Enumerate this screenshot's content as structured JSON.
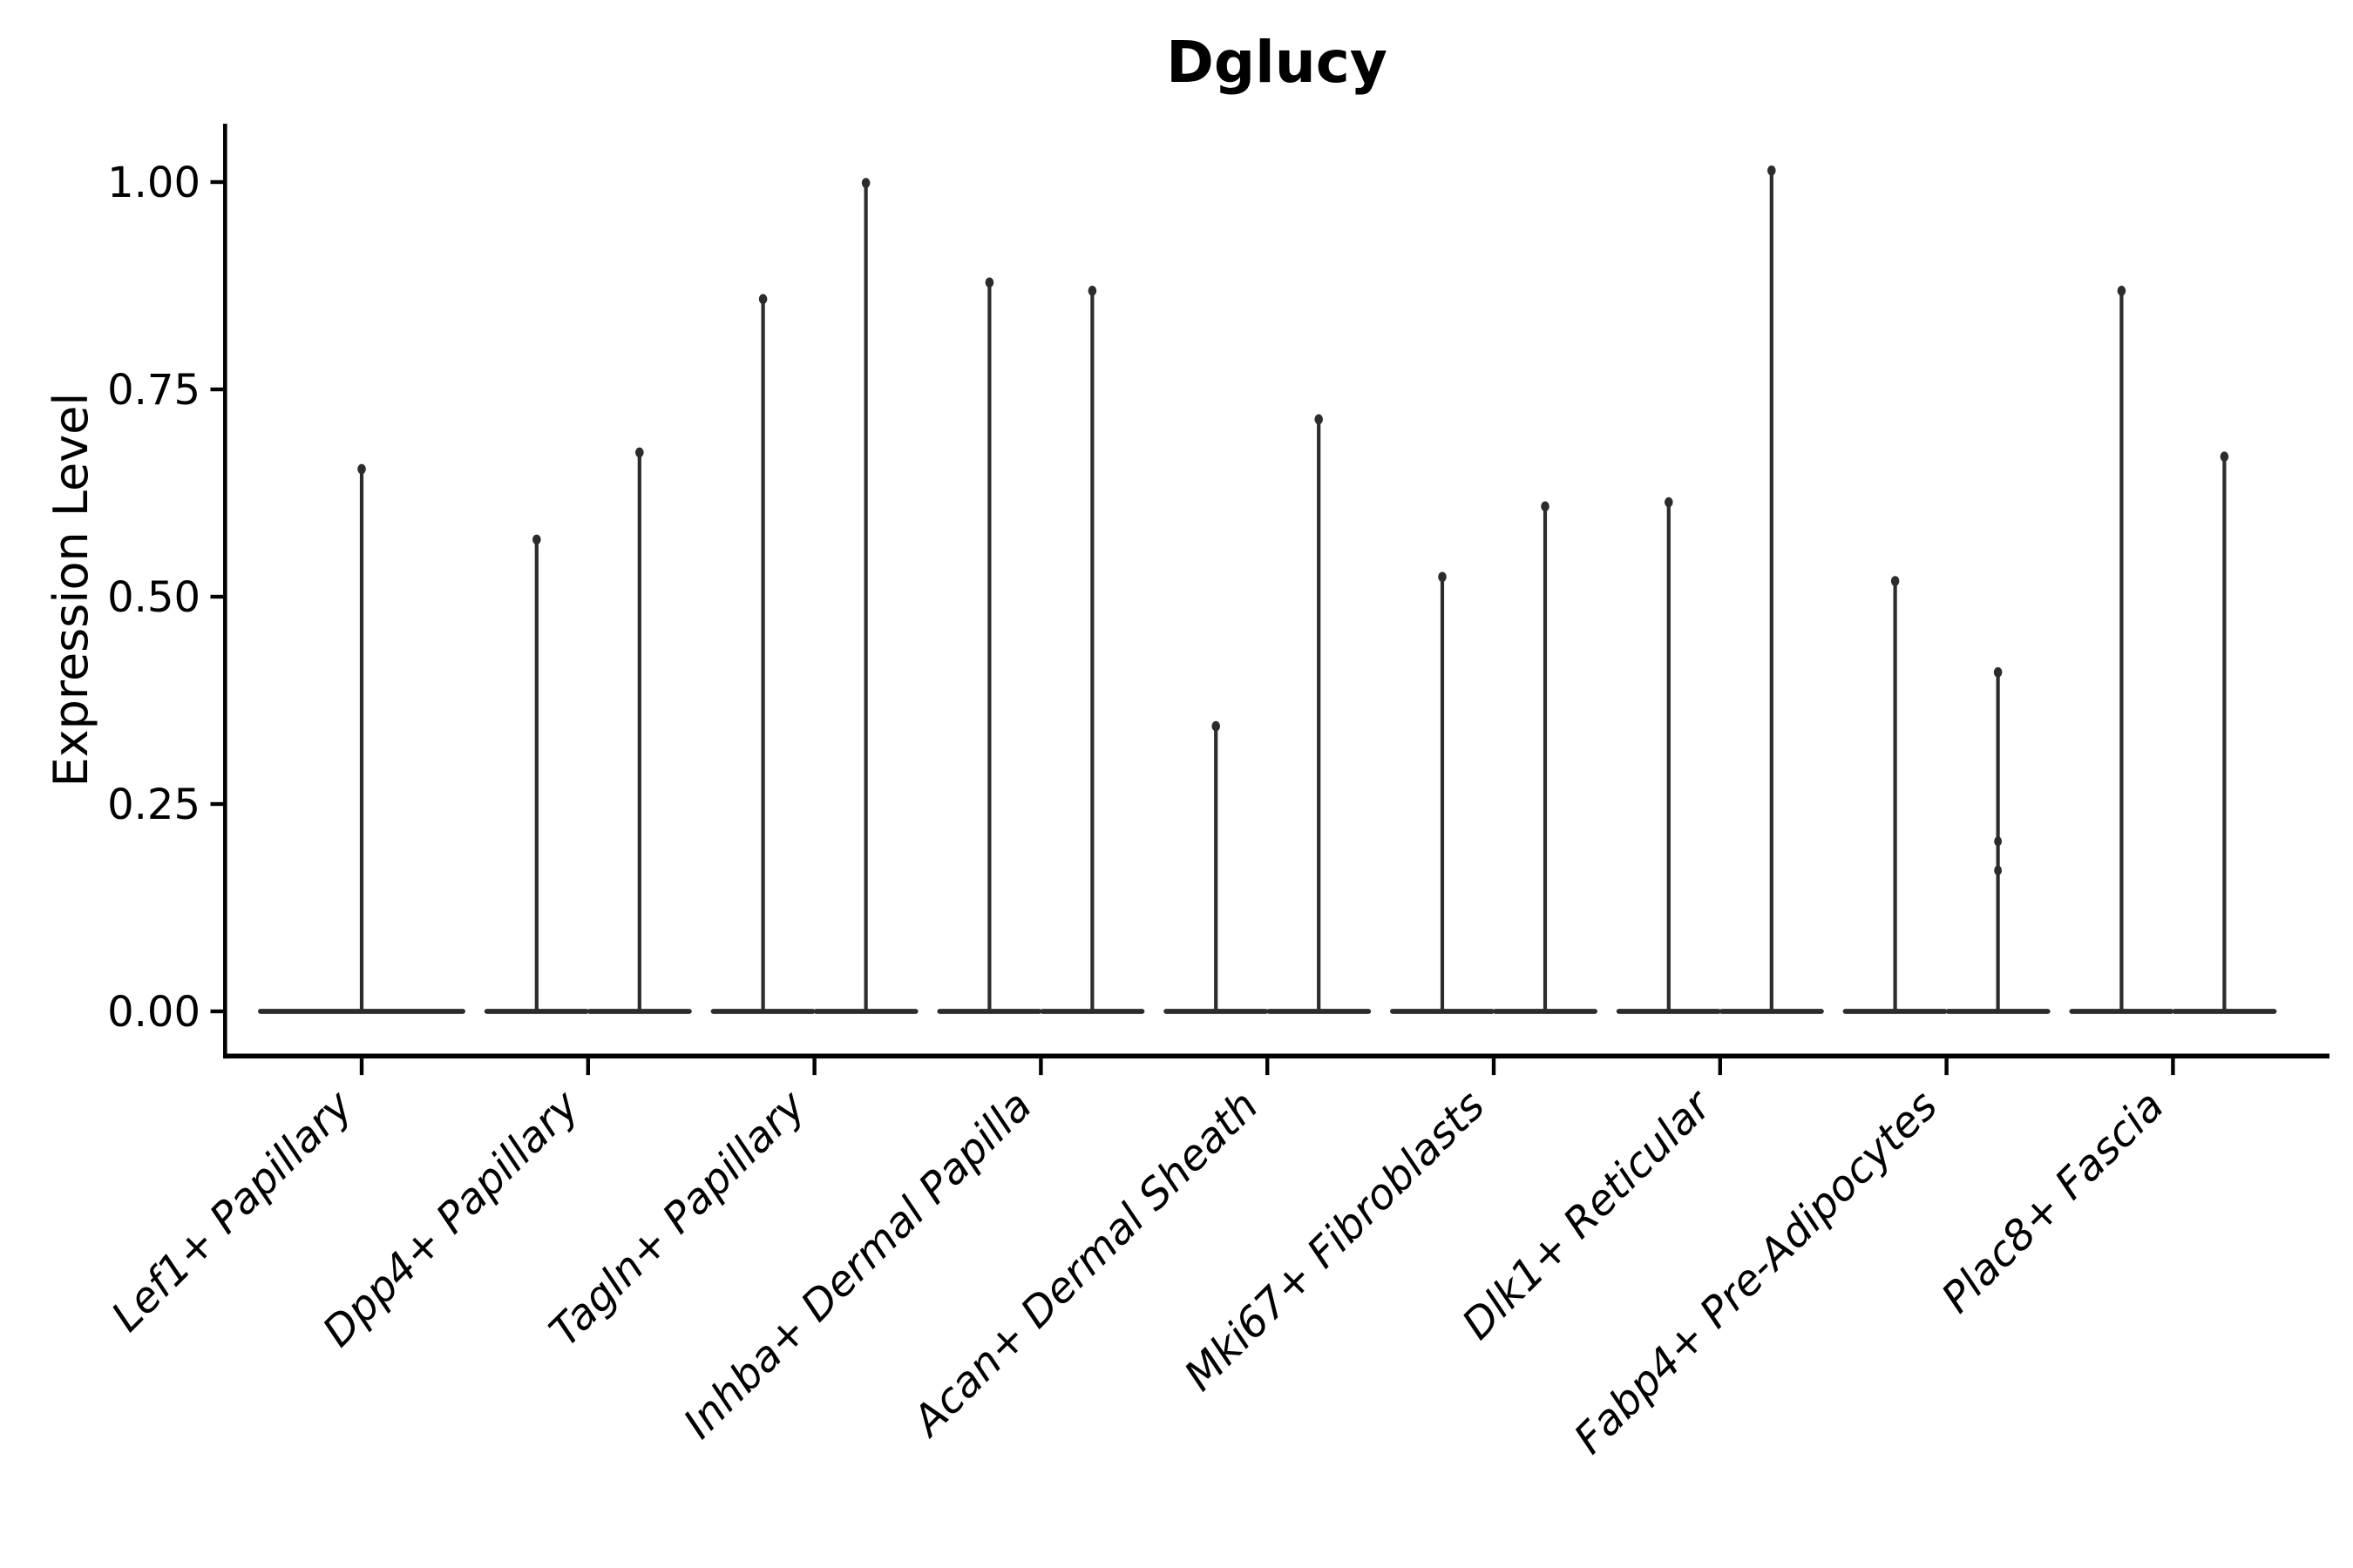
{
  "figure": {
    "title": "Dglucy",
    "ylabel": "Expression Level"
  },
  "chart_data": {
    "type": "violin",
    "title": "Dglucy",
    "xlabel": "",
    "ylabel": "Expression Level",
    "ylim": [
      -0.05,
      1.06
    ],
    "yticks": [
      {
        "value": 1.0,
        "label": "1.00"
      },
      {
        "value": 0.75,
        "label": "0.75"
      },
      {
        "value": 0.5,
        "label": "0.50"
      },
      {
        "value": 0.25,
        "label": "0.25"
      },
      {
        "value": 0.0,
        "label": "0.00"
      }
    ],
    "grid": false,
    "legend": "none",
    "description": "Ultra-thin violins: nearly all density mass at expression 0 (flat baseline lens) with a thin spike rising to the maximum expression value; categories 2-9 contain two violins each, category 1 a single centered violin.",
    "categories": [
      "Lef1+ Papillary",
      "Dpp4+ Papillary",
      "Tagln+ Papillary",
      "Inhba+ Dermal Papilla",
      "Acan+ Dermal Sheath",
      "Mki67+ Fibroblasts",
      "Dlk1+ Reticular",
      "Fabp4+ Pre-Adipocytes",
      "Plac8+ Fascia"
    ],
    "violins": [
      {
        "category": "Lef1+ Papillary",
        "spikes": [
          {
            "position": "center",
            "max": 0.66
          }
        ]
      },
      {
        "category": "Dpp4+ Papillary",
        "spikes": [
          {
            "position": "left",
            "max": 0.575
          },
          {
            "position": "right",
            "max": 0.68
          }
        ]
      },
      {
        "category": "Tagln+ Papillary",
        "spikes": [
          {
            "position": "left",
            "max": 0.865
          },
          {
            "position": "right",
            "max": 1.005
          }
        ]
      },
      {
        "category": "Inhba+ Dermal Papilla",
        "spikes": [
          {
            "position": "left",
            "max": 0.885
          },
          {
            "position": "right",
            "max": 0.875
          }
        ]
      },
      {
        "category": "Acan+ Dermal Sheath",
        "spikes": [
          {
            "position": "left",
            "max": 0.35
          },
          {
            "position": "right",
            "max": 0.72
          }
        ]
      },
      {
        "category": "Mki67+ Fibroblasts",
        "spikes": [
          {
            "position": "left",
            "max": 0.53
          },
          {
            "position": "right",
            "max": 0.615
          }
        ]
      },
      {
        "category": "Dlk1+ Reticular",
        "spikes": [
          {
            "position": "left",
            "max": 0.62
          },
          {
            "position": "right",
            "max": 1.02
          }
        ]
      },
      {
        "category": "Fabp4+ Pre-Adipocytes",
        "spikes": [
          {
            "position": "left",
            "max": 0.525
          },
          {
            "position": "right",
            "max": 0.415,
            "bumps": [
              0.205,
              0.17
            ]
          }
        ]
      },
      {
        "category": "Plac8+ Fascia",
        "spikes": [
          {
            "position": "left",
            "max": 0.875
          },
          {
            "position": "right",
            "max": 0.675
          }
        ]
      }
    ],
    "colors": {
      "violin": "#2c2c2c",
      "axis": "#000000",
      "text": "#000000",
      "background": "#ffffff"
    }
  }
}
